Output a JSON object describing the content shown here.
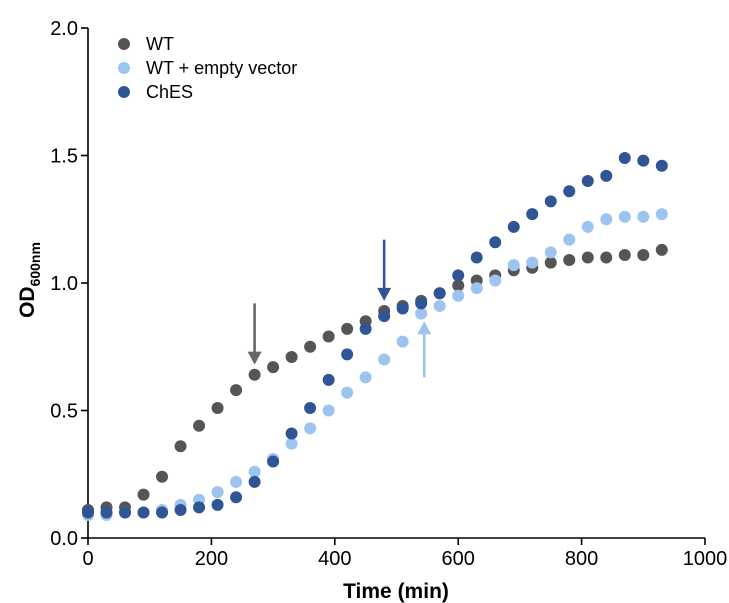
{
  "chart_data": {
    "type": "scatter",
    "xlabel": "Time (min)",
    "ylabel_main": "OD",
    "ylabel_sub": "600nm",
    "xlim": [
      0,
      1000
    ],
    "ylim": [
      0,
      2.0
    ],
    "x_ticks": [
      0,
      200,
      400,
      600,
      800,
      1000
    ],
    "x_tick_labels": [
      "0",
      "200",
      "400",
      "600",
      "800",
      "1000"
    ],
    "y_ticks": [
      0,
      0.5,
      1.0,
      1.5,
      2.0
    ],
    "y_tick_labels": [
      "0.0",
      "0.5",
      "1.0",
      "1.5",
      "2.0"
    ],
    "grid": false,
    "legend_position": "top-left",
    "series": [
      {
        "name": "WT",
        "color": "#555555",
        "x": [
          0,
          30,
          60,
          90,
          120,
          150,
          180,
          210,
          240,
          270,
          300,
          330,
          360,
          390,
          420,
          450,
          480,
          510,
          540,
          570,
          600,
          630,
          660,
          690,
          720,
          750,
          780,
          810,
          840,
          870,
          900,
          930
        ],
        "y": [
          0.11,
          0.12,
          0.12,
          0.17,
          0.24,
          0.36,
          0.44,
          0.51,
          0.58,
          0.64,
          0.67,
          0.71,
          0.75,
          0.79,
          0.82,
          0.85,
          0.89,
          0.91,
          0.93,
          0.96,
          0.99,
          1.01,
          1.03,
          1.05,
          1.06,
          1.08,
          1.09,
          1.1,
          1.1,
          1.11,
          1.11,
          1.13
        ]
      },
      {
        "name": "WT + empty vector",
        "color": "#9dc3f0",
        "x": [
          0,
          30,
          60,
          90,
          120,
          150,
          180,
          210,
          240,
          270,
          300,
          330,
          360,
          390,
          420,
          450,
          480,
          510,
          540,
          570,
          600,
          630,
          660,
          690,
          720,
          750,
          780,
          810,
          840,
          870,
          900,
          930
        ],
        "y": [
          0.09,
          0.09,
          0.1,
          0.1,
          0.11,
          0.13,
          0.15,
          0.18,
          0.22,
          0.26,
          0.31,
          0.37,
          0.43,
          0.5,
          0.57,
          0.63,
          0.7,
          0.77,
          0.88,
          0.91,
          0.95,
          0.98,
          1.01,
          1.07,
          1.08,
          1.12,
          1.17,
          1.22,
          1.25,
          1.26,
          1.26,
          1.27
        ]
      },
      {
        "name": "ChES",
        "color": "#2f5597",
        "x": [
          0,
          30,
          60,
          90,
          120,
          150,
          180,
          210,
          240,
          270,
          300,
          330,
          360,
          390,
          420,
          450,
          480,
          510,
          540,
          570,
          600,
          630,
          660,
          690,
          720,
          750,
          780,
          810,
          840,
          870,
          900,
          930
        ],
        "y": [
          0.1,
          0.1,
          0.1,
          0.1,
          0.1,
          0.11,
          0.12,
          0.13,
          0.16,
          0.22,
          0.3,
          0.41,
          0.51,
          0.62,
          0.72,
          0.82,
          0.87,
          0.9,
          0.92,
          0.96,
          1.03,
          1.1,
          1.16,
          1.22,
          1.27,
          1.32,
          1.36,
          1.4,
          1.42,
          1.49,
          1.48,
          1.46
        ]
      }
    ],
    "annotations": [
      {
        "type": "arrow",
        "direction": "down",
        "color": "#666666",
        "x": 270,
        "y_from": 0.92,
        "y_to": 0.68
      },
      {
        "type": "arrow",
        "direction": "down",
        "color": "#2f5597",
        "x": 480,
        "y_from": 1.17,
        "y_to": 0.93
      },
      {
        "type": "arrow",
        "direction": "up",
        "color": "#9dc3f0",
        "x": 545,
        "y_from": 0.63,
        "y_to": 0.85
      }
    ]
  }
}
